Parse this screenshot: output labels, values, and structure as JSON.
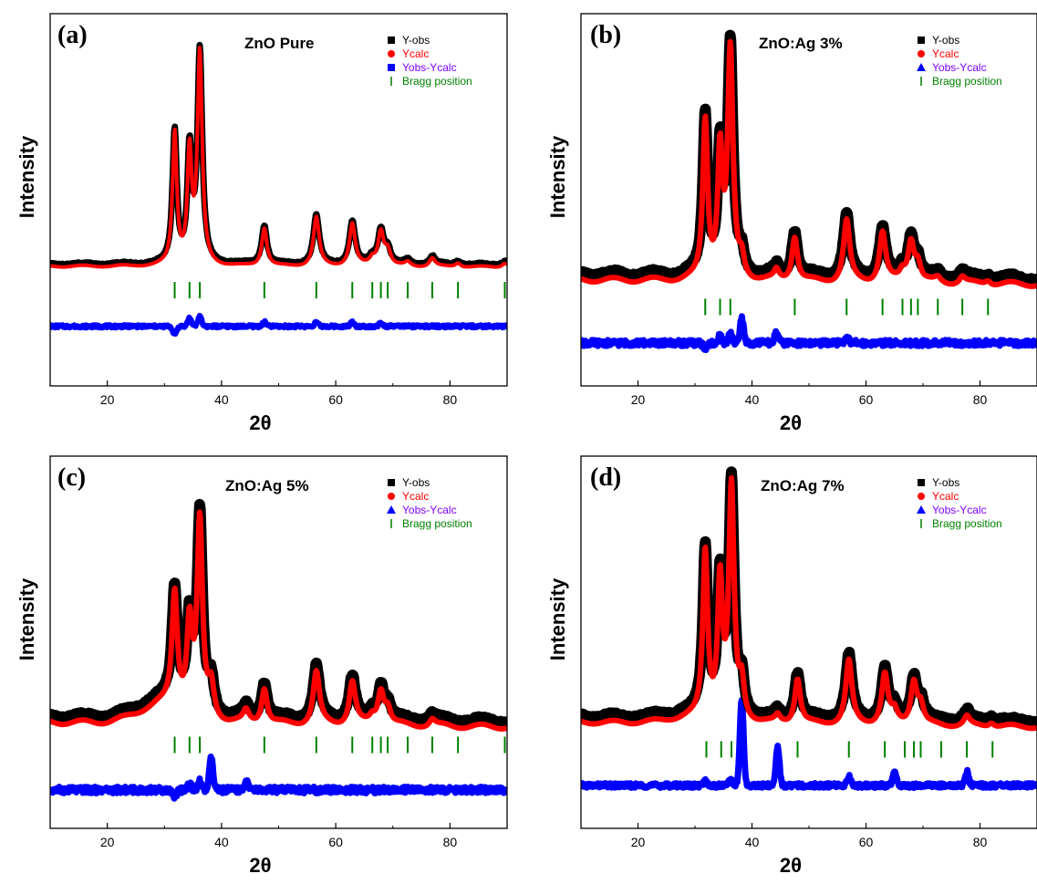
{
  "chart_data": [
    {
      "type": "line",
      "panel": "(a)",
      "sample": "ZnO Pure",
      "xlabel": "2θ",
      "ylabel": "Intensity",
      "xlim": [
        10,
        90
      ],
      "ylim": [
        -0.55,
        1.2
      ],
      "xticks": [
        "20",
        "40",
        "60",
        "80"
      ],
      "legend": [
        "Y-obs",
        "Ycalc",
        "Yobs-Ycalc",
        "Bragg position"
      ],
      "legend_position": "top-right",
      "background": {
        "left": 0.012,
        "right": 0.008,
        "hump": 0.0,
        "ripple": 0.004
      },
      "peaks": [
        {
          "x": 31.8,
          "h": 0.62,
          "w": 0.45
        },
        {
          "x": 34.4,
          "h": 0.52,
          "w": 0.45
        },
        {
          "x": 36.2,
          "h": 0.99,
          "w": 0.5
        },
        {
          "x": 47.5,
          "h": 0.18,
          "w": 0.55
        },
        {
          "x": 56.6,
          "h": 0.23,
          "w": 0.6
        },
        {
          "x": 62.9,
          "h": 0.2,
          "w": 0.6
        },
        {
          "x": 66.4,
          "h": 0.03,
          "w": 0.6
        },
        {
          "x": 67.9,
          "h": 0.16,
          "w": 0.6
        },
        {
          "x": 69.1,
          "h": 0.07,
          "w": 0.6
        },
        {
          "x": 72.6,
          "h": 0.02,
          "w": 0.6
        },
        {
          "x": 76.9,
          "h": 0.04,
          "w": 0.6
        },
        {
          "x": 81.4,
          "h": 0.02,
          "w": 0.6
        },
        {
          "x": 89.6,
          "h": 0.02,
          "w": 0.6
        }
      ],
      "obs_excess": 0.015,
      "bragg_positions": [
        31.8,
        34.4,
        36.2,
        47.5,
        56.6,
        62.9,
        66.4,
        67.9,
        69.1,
        72.6,
        76.9,
        81.4,
        89.6
      ],
      "bragg_y": -0.1,
      "diff": {
        "baseline": -0.27,
        "noise": 0.007,
        "bumps": [
          {
            "x": 31.8,
            "a": -0.04
          },
          {
            "x": 34.4,
            "a": 0.04
          },
          {
            "x": 36.2,
            "a": 0.05
          },
          {
            "x": 47.5,
            "a": 0.02
          },
          {
            "x": 56.6,
            "a": 0.02
          },
          {
            "x": 62.9,
            "a": 0.02
          },
          {
            "x": 67.9,
            "a": 0.015
          }
        ]
      },
      "colors": {
        "obs": "#000000",
        "calc": "#ff0000",
        "diff": "#0000ff",
        "bragg": "#008000"
      }
    },
    {
      "type": "line",
      "panel": "(b)",
      "sample": "ZnO:Ag 3%",
      "xlabel": "2θ",
      "ylabel": "Intensity",
      "xlim": [
        10,
        90
      ],
      "ylim": [
        -0.45,
        1.2
      ],
      "xticks": [
        "20",
        "40",
        "60",
        "80"
      ],
      "legend": [
        "Y-obs",
        "Ycalc",
        "Yobs-Ycalc",
        "Bragg position"
      ],
      "legend_position": "top-right",
      "background": {
        "left": 0.02,
        "right": 0.0,
        "hump": 0.0,
        "ripple": 0.01
      },
      "peaks": [
        {
          "x": 31.8,
          "h": 0.7,
          "w": 0.5
        },
        {
          "x": 34.4,
          "h": 0.55,
          "w": 0.5
        },
        {
          "x": 36.2,
          "h": 1.0,
          "w": 0.55
        },
        {
          "x": 38.2,
          "h": 0.08,
          "w": 0.5
        },
        {
          "x": 44.3,
          "h": 0.04,
          "w": 0.5
        },
        {
          "x": 47.5,
          "h": 0.2,
          "w": 0.6
        },
        {
          "x": 56.6,
          "h": 0.27,
          "w": 0.65
        },
        {
          "x": 62.9,
          "h": 0.22,
          "w": 0.65
        },
        {
          "x": 66.4,
          "h": 0.04,
          "w": 0.6
        },
        {
          "x": 67.9,
          "h": 0.18,
          "w": 0.65
        },
        {
          "x": 69.1,
          "h": 0.08,
          "w": 0.6
        },
        {
          "x": 72.6,
          "h": 0.02,
          "w": 0.6
        },
        {
          "x": 76.9,
          "h": 0.03,
          "w": 0.6
        },
        {
          "x": 81.4,
          "h": 0.02,
          "w": 0.6
        }
      ],
      "obs_excess": 0.035,
      "bragg_positions": [
        31.8,
        34.4,
        36.2,
        47.5,
        56.6,
        62.9,
        66.4,
        67.9,
        69.1,
        72.6,
        76.9,
        81.4
      ],
      "bragg_y": -0.1,
      "diff": {
        "baseline": -0.26,
        "noise": 0.013,
        "bumps": [
          {
            "x": 31.8,
            "a": -0.03
          },
          {
            "x": 34.4,
            "a": 0.03
          },
          {
            "x": 36.2,
            "a": 0.04
          },
          {
            "x": 38.2,
            "a": 0.11
          },
          {
            "x": 44.3,
            "a": 0.045
          },
          {
            "x": 56.6,
            "a": 0.025
          }
        ]
      },
      "colors": {
        "obs": "#000000",
        "calc": "#ff0000",
        "diff": "#0000ff",
        "bragg": "#008000"
      }
    },
    {
      "type": "line",
      "panel": "(c)",
      "sample": "ZnO:Ag 5%",
      "xlabel": "2θ",
      "ylabel": "Intensity",
      "xlim": [
        10,
        90
      ],
      "ylim": [
        -0.45,
        1.2
      ],
      "xticks": [
        "20",
        "40",
        "60",
        "80"
      ],
      "legend": [
        "Y-obs",
        "Ycalc",
        "Yobs-Ycalc",
        "Bragg position"
      ],
      "legend_position": "top-right",
      "background": {
        "left": 0.02,
        "right": 0.0,
        "hump": 0.08,
        "ripple": 0.01
      },
      "peaks": [
        {
          "x": 31.8,
          "h": 0.5,
          "w": 0.55
        },
        {
          "x": 34.4,
          "h": 0.38,
          "w": 0.55
        },
        {
          "x": 36.2,
          "h": 0.85,
          "w": 0.55
        },
        {
          "x": 38.2,
          "h": 0.14,
          "w": 0.6
        },
        {
          "x": 44.3,
          "h": 0.05,
          "w": 0.6
        },
        {
          "x": 47.5,
          "h": 0.16,
          "w": 0.6
        },
        {
          "x": 56.6,
          "h": 0.23,
          "w": 0.65
        },
        {
          "x": 62.9,
          "h": 0.19,
          "w": 0.65
        },
        {
          "x": 66.4,
          "h": 0.03,
          "w": 0.6
        },
        {
          "x": 67.9,
          "h": 0.15,
          "w": 0.65
        },
        {
          "x": 69.1,
          "h": 0.07,
          "w": 0.6
        },
        {
          "x": 76.9,
          "h": 0.03,
          "w": 0.6
        }
      ],
      "obs_excess": 0.035,
      "bragg_positions": [
        31.8,
        34.4,
        36.2,
        47.5,
        56.6,
        62.9,
        66.4,
        67.9,
        69.1,
        72.6,
        76.9,
        81.4,
        89.6
      ],
      "bragg_y": -0.08,
      "diff": {
        "baseline": -0.28,
        "noise": 0.014,
        "bumps": [
          {
            "x": 31.8,
            "a": -0.03
          },
          {
            "x": 34.4,
            "a": 0.03
          },
          {
            "x": 36.2,
            "a": 0.04
          },
          {
            "x": 38.2,
            "a": 0.14
          },
          {
            "x": 44.3,
            "a": 0.04
          }
        ]
      },
      "colors": {
        "obs": "#000000",
        "calc": "#ff0000",
        "diff": "#0000ff",
        "bragg": "#008000"
      }
    },
    {
      "type": "line",
      "panel": "(d)",
      "sample": "ZnO:Ag 7%",
      "xlabel": "2θ",
      "ylabel": "Intensity",
      "xlim": [
        10,
        90
      ],
      "ylim": [
        -0.45,
        1.2
      ],
      "xticks": [
        "20",
        "40",
        "60",
        "80"
      ],
      "legend": [
        "Y-obs",
        "Ycalc",
        "Yobs-Ycalc",
        "Bragg position"
      ],
      "legend_position": "top-right",
      "background": {
        "left": 0.02,
        "right": 0.0,
        "hump": 0.02,
        "ripple": 0.008
      },
      "peaks": [
        {
          "x": 31.8,
          "h": 0.73,
          "w": 0.5
        },
        {
          "x": 34.4,
          "h": 0.6,
          "w": 0.5
        },
        {
          "x": 36.4,
          "h": 1.02,
          "w": 0.55
        },
        {
          "x": 38.2,
          "h": 0.15,
          "w": 0.5
        },
        {
          "x": 44.5,
          "h": 0.03,
          "w": 0.5
        },
        {
          "x": 48.0,
          "h": 0.2,
          "w": 0.6
        },
        {
          "x": 57.0,
          "h": 0.28,
          "w": 0.65
        },
        {
          "x": 63.3,
          "h": 0.22,
          "w": 0.65
        },
        {
          "x": 65.0,
          "h": 0.05,
          "w": 0.6
        },
        {
          "x": 68.4,
          "h": 0.19,
          "w": 0.65
        },
        {
          "x": 69.6,
          "h": 0.08,
          "w": 0.6
        },
        {
          "x": 77.7,
          "h": 0.04,
          "w": 0.6
        },
        {
          "x": 82.0,
          "h": 0.02,
          "w": 0.6
        }
      ],
      "obs_excess": 0.035,
      "bragg_positions": [
        32.0,
        34.6,
        36.4,
        48.0,
        57.0,
        63.3,
        66.8,
        68.4,
        69.6,
        73.2,
        77.7,
        82.2
      ],
      "bragg_y": -0.1,
      "diff": {
        "baseline": -0.26,
        "noise": 0.01,
        "bumps": [
          {
            "x": 31.8,
            "a": 0.02
          },
          {
            "x": 36.2,
            "a": 0.03
          },
          {
            "x": 38.2,
            "a": 0.38
          },
          {
            "x": 44.5,
            "a": 0.17
          },
          {
            "x": 57.0,
            "a": 0.04
          },
          {
            "x": 65.0,
            "a": 0.06
          },
          {
            "x": 77.7,
            "a": 0.06
          }
        ]
      },
      "colors": {
        "obs": "#000000",
        "calc": "#ff0000",
        "diff": "#0000ff",
        "bragg": "#008000"
      }
    }
  ]
}
